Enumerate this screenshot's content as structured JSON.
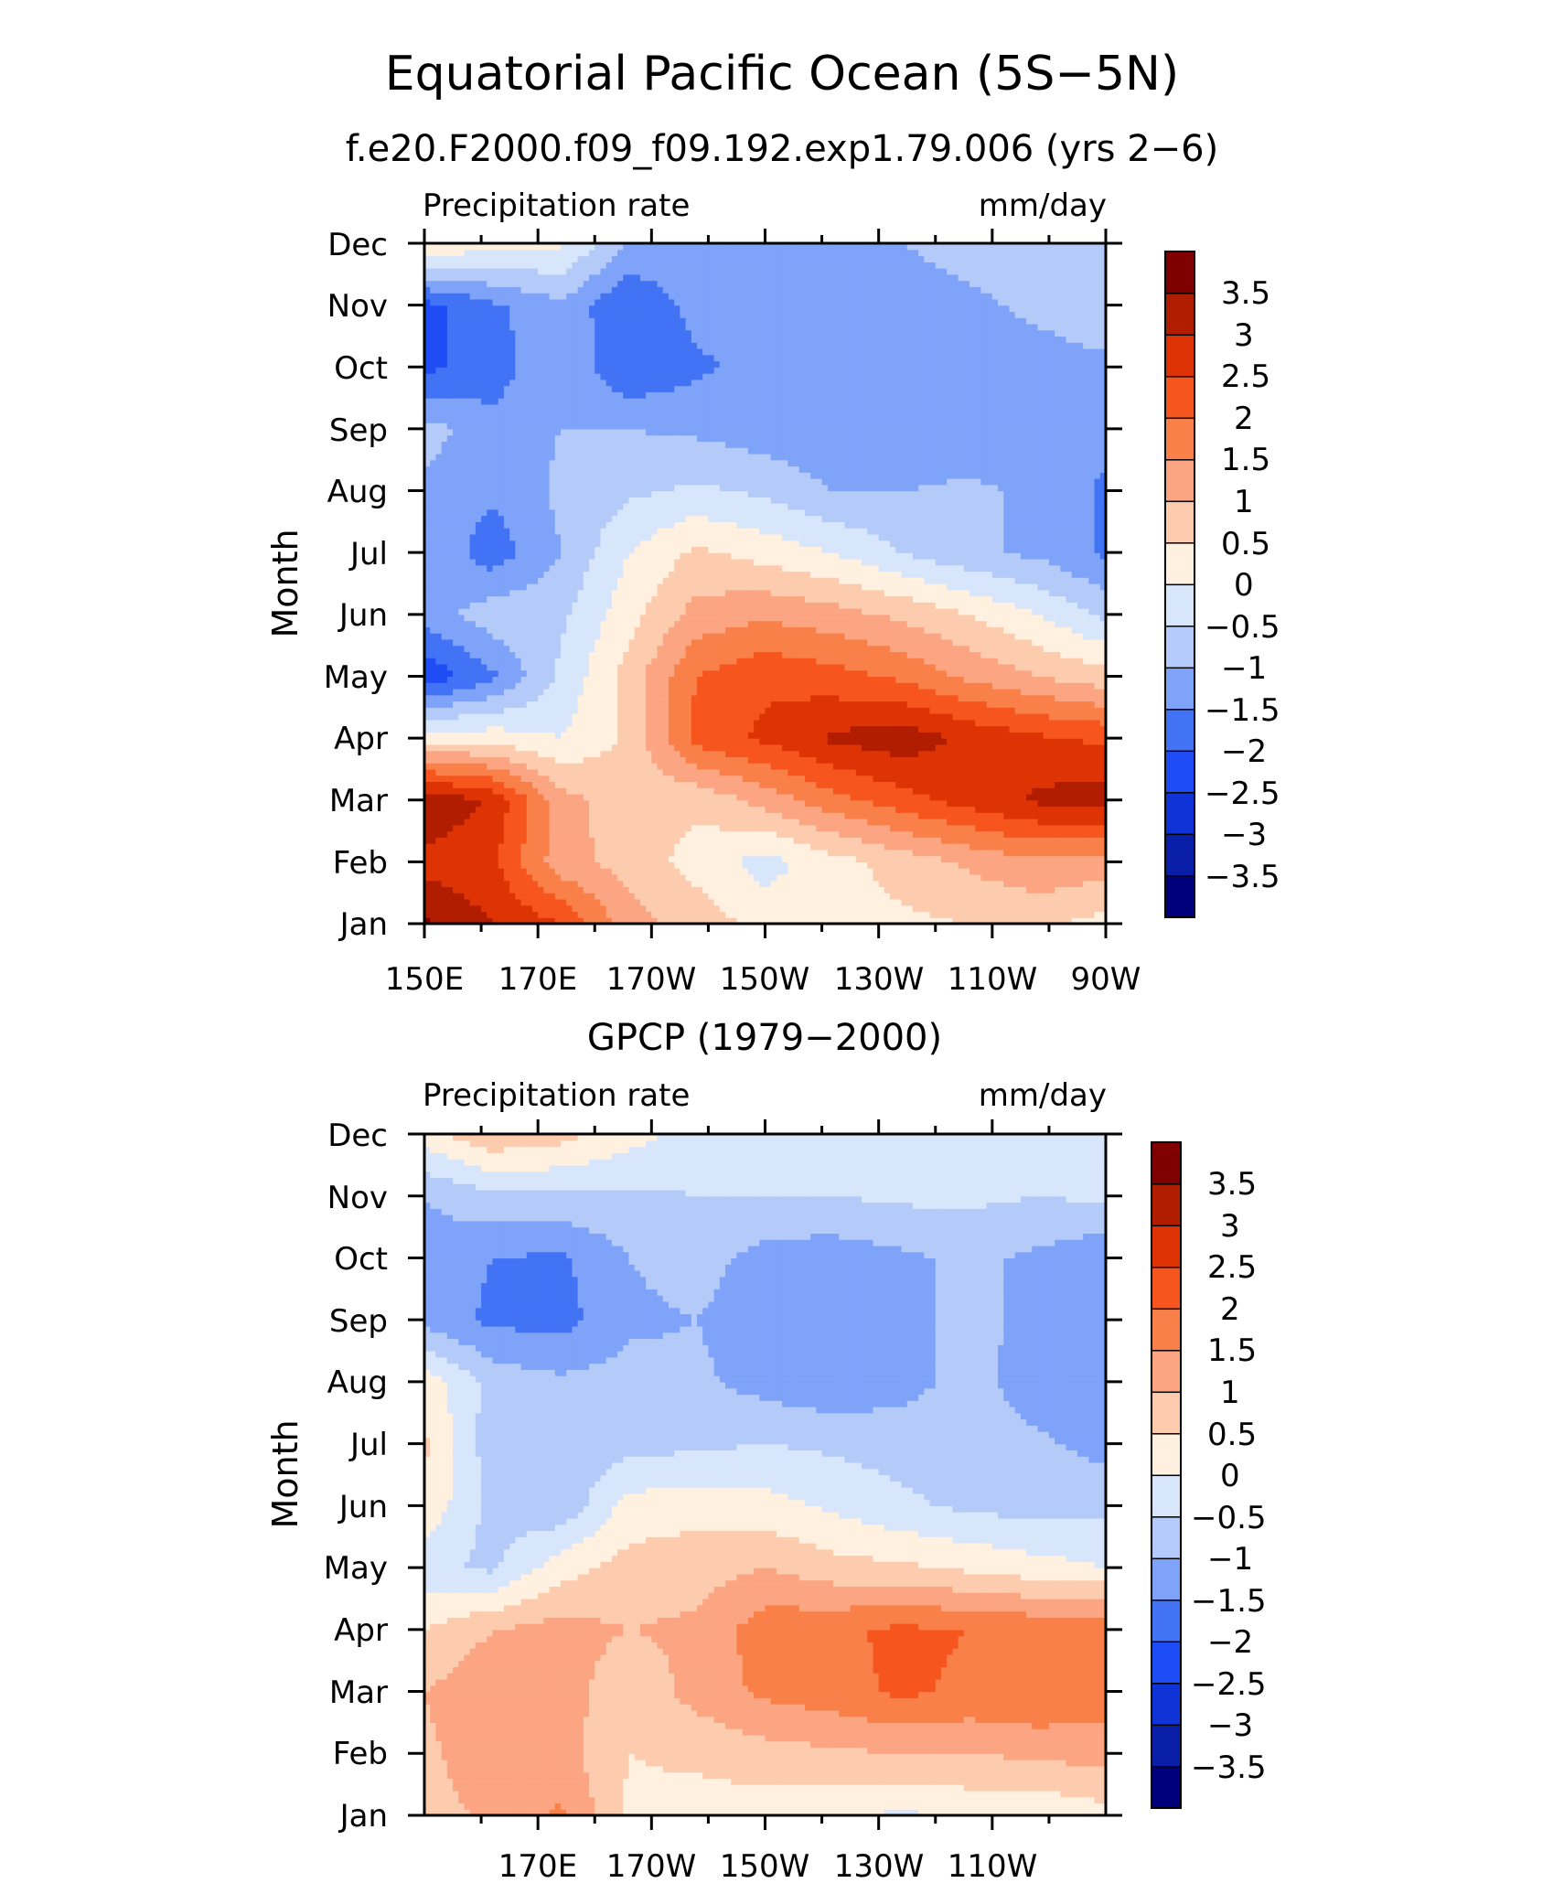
{
  "figure": {
    "title": "Equatorial Pacific Ocean (5S−5N)"
  },
  "colors": {
    "levels": [
      "#00007a",
      "#0a1fa8",
      "#0f33d6",
      "#1f4df5",
      "#4273f5",
      "#7fa3f9",
      "#b4cbf9",
      "#d8e6fb",
      "#fff0e0",
      "#fdccae",
      "#fca582",
      "#f98049",
      "#f6561e",
      "#de3405",
      "#b11d00",
      "#800000"
    ],
    "frame": "#000000"
  },
  "colorbar": {
    "labels": [
      "3.5",
      "3",
      "2.5",
      "2",
      "1.5",
      "1",
      "0.5",
      "0",
      "−0.5",
      "−1",
      "−1.5",
      "−2",
      "−2.5",
      "−3",
      "−3.5"
    ]
  },
  "chart_data": [
    {
      "type": "heatmap",
      "title": "f.e20.F2000.f09_f09.192.exp1.79.006 (yrs 2−6)",
      "left_string": "Precipitation rate",
      "right_string": "mm/day",
      "xlabel": "",
      "ylabel": "Month",
      "x_tick_labels": [
        "150E",
        "170E",
        "170W",
        "150W",
        "130W",
        "110W",
        "90W"
      ],
      "y_tick_labels": [
        "Jan",
        "Feb",
        "Mar",
        "Apr",
        "May",
        "Jun",
        "Jul",
        "Aug",
        "Sep",
        "Oct",
        "Nov",
        "Dec"
      ],
      "xlim": [
        150,
        270
      ],
      "ylim": [
        1,
        12
      ],
      "x_ticks": [
        150,
        170,
        190,
        210,
        230,
        250,
        270
      ],
      "x_minor_ticks": [
        160,
        180,
        200,
        220,
        240,
        260
      ],
      "x_nodes": [
        150,
        162,
        174,
        186,
        198,
        210,
        222,
        234,
        246,
        258,
        270
      ],
      "y_nodes": [
        1,
        2,
        3,
        4,
        5,
        6,
        7,
        8,
        9,
        10,
        11,
        12
      ],
      "values": [
        [
          3.6,
          3.0,
          2.5,
          1.2,
          0.8,
          0.3,
          0.3,
          0.4,
          0.5,
          0.6,
          0.3
        ],
        [
          2.8,
          2.6,
          1.2,
          0.8,
          0.3,
          -0.2,
          0.3,
          0.7,
          1.1,
          1.4,
          1.3
        ],
        [
          3.5,
          2.9,
          1.2,
          0.7,
          0.6,
          1.2,
          1.8,
          2.3,
          2.7,
          3.1,
          3.3
        ],
        [
          0.3,
          0.3,
          0.0,
          0.6,
          2.2,
          2.6,
          3.1,
          3.3,
          2.9,
          2.6,
          2.4
        ],
        [
          -2.4,
          -1.6,
          -0.4,
          0.7,
          2.0,
          2.4,
          2.2,
          1.9,
          1.4,
          1.0,
          0.7
        ],
        [
          -1.3,
          -0.7,
          -0.6,
          0.3,
          1.2,
          1.4,
          1.2,
          0.9,
          0.5,
          0.0,
          -0.6
        ],
        [
          -1.0,
          -1.8,
          -1.0,
          0.0,
          0.6,
          0.3,
          0.0,
          -0.5,
          -0.9,
          -1.1,
          -1.6
        ],
        [
          -1.1,
          -1.4,
          -0.9,
          -0.6,
          -0.4,
          -0.6,
          -1.0,
          -1.0,
          -0.9,
          -1.1,
          -1.6
        ],
        [
          -0.8,
          -1.3,
          -1.0,
          -1.0,
          -1.1,
          -1.3,
          -1.4,
          -1.4,
          -1.4,
          -1.4,
          -1.3
        ],
        [
          -2.1,
          -1.8,
          -1.0,
          -2.0,
          -1.6,
          -1.3,
          -1.3,
          -1.4,
          -1.3,
          -1.2,
          -1.1
        ],
        [
          -2.2,
          -1.6,
          -1.1,
          -2.0,
          -1.3,
          -1.3,
          -1.2,
          -1.3,
          -1.1,
          -0.9,
          -0.7
        ],
        [
          0.5,
          0.2,
          0.1,
          -1.0,
          -1.2,
          -1.2,
          -1.2,
          -1.0,
          -0.8,
          -0.8,
          -0.8
        ]
      ]
    },
    {
      "type": "heatmap",
      "title": "GPCP (1979−2000)",
      "left_string": "Precipitation rate",
      "right_string": "mm/day",
      "xlabel": "",
      "ylabel": "Month",
      "x_tick_labels": [
        "170E",
        "170W",
        "150W",
        "130W",
        "110W"
      ],
      "y_tick_labels": [
        "Jan",
        "Feb",
        "Mar",
        "Apr",
        "May",
        "Jun",
        "Jul",
        "Aug",
        "Sep",
        "Oct",
        "Nov",
        "Dec"
      ],
      "xlim": [
        150,
        270
      ],
      "ylim": [
        1,
        12
      ],
      "x_ticks": [
        170,
        190,
        210,
        230,
        250
      ],
      "x_minor_ticks": [
        160,
        180,
        200,
        220,
        240,
        260
      ],
      "x_nodes": [
        150,
        162,
        174,
        186,
        198,
        210,
        222,
        234,
        246,
        258,
        270
      ],
      "y_nodes": [
        1,
        2,
        3,
        4,
        5,
        6,
        7,
        8,
        9,
        10,
        11,
        12
      ],
      "values": [
        [
          0.8,
          1.1,
          1.6,
          0.4,
          0.3,
          0.2,
          0.1,
          -0.1,
          0.1,
          0.1,
          0.3
        ],
        [
          0.9,
          1.3,
          1.2,
          0.5,
          0.6,
          0.8,
          0.9,
          1.0,
          1.0,
          1.1,
          1.2
        ],
        [
          1.0,
          1.4,
          1.3,
          0.6,
          1.2,
          1.6,
          1.8,
          2.1,
          1.9,
          2.0,
          1.8
        ],
        [
          0.5,
          1.0,
          1.2,
          1.0,
          1.1,
          1.8,
          1.9,
          2.1,
          2.0,
          1.9,
          2.0
        ],
        [
          -0.4,
          -0.6,
          0.3,
          0.7,
          0.8,
          1.0,
          0.7,
          0.6,
          0.4,
          0.2,
          0.0
        ],
        [
          0.4,
          -0.7,
          -0.9,
          0.2,
          0.3,
          0.2,
          -0.1,
          -0.4,
          -0.6,
          -0.7,
          -0.6
        ],
        [
          0.6,
          -0.8,
          -0.9,
          -0.7,
          -0.6,
          -0.5,
          -0.6,
          -0.7,
          -0.7,
          -0.9,
          -1.2
        ],
        [
          0.3,
          -0.7,
          -0.9,
          -0.8,
          -0.9,
          -1.2,
          -1.4,
          -1.2,
          -0.8,
          -1.3,
          -1.4
        ],
        [
          -1.2,
          -1.6,
          -1.7,
          -1.1,
          -1.0,
          -1.3,
          -1.4,
          -1.2,
          -0.8,
          -1.2,
          -1.5
        ],
        [
          -1.2,
          -1.5,
          -1.6,
          -1.0,
          -0.8,
          -1.2,
          -1.3,
          -1.1,
          -0.9,
          -1.1,
          -1.4
        ],
        [
          -1.0,
          -0.6,
          -0.6,
          -0.6,
          -0.5,
          -0.5,
          -0.5,
          -0.4,
          -0.4,
          -0.5,
          -0.4
        ],
        [
          0.3,
          0.9,
          0.7,
          0.2,
          -0.2,
          -0.3,
          -0.4,
          -0.3,
          -0.3,
          -0.3,
          -0.3
        ]
      ]
    }
  ]
}
